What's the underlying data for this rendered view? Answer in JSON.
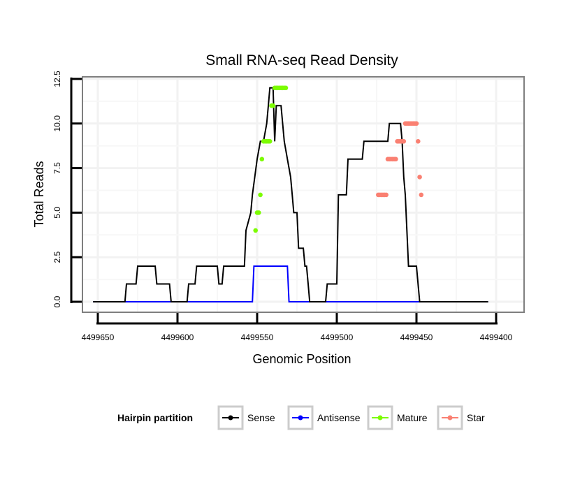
{
  "chart_data": {
    "type": "line",
    "title": "Small RNA-seq Read Density",
    "xlabel": "Genomic Position",
    "ylabel": "Total Reads",
    "x_reversed": true,
    "xlim": [
      4499405,
      4499655
    ],
    "ylim": [
      0,
      12.5
    ],
    "xticks": [
      4499650,
      4499600,
      4499550,
      4499500,
      4499450,
      4499400
    ],
    "xtick_labels": [
      "4499650",
      "4499600",
      "4499550",
      "4499500",
      "4499450",
      "4499400"
    ],
    "yticks": [
      0,
      2.5,
      5,
      7.5,
      10,
      12.5
    ],
    "ytick_labels": [
      "0.0",
      "2.5",
      "5.0",
      "7.5",
      "10.0",
      "12.5"
    ],
    "legend": {
      "title": "Hairpin partition",
      "position": "bottom",
      "entries": [
        {
          "name": "Sense",
          "color": "#000000"
        },
        {
          "name": "Antisense",
          "color": "#0000ff"
        },
        {
          "name": "Mature",
          "color": "#7cfc00"
        },
        {
          "name": "Star",
          "color": "#fa8072"
        }
      ]
    },
    "series": [
      {
        "name": "Sense",
        "color": "#000000",
        "x": [
          4499653,
          4499633,
          4499632,
          4499626,
          4499625,
          4499614,
          4499613,
          4499605,
          4499604,
          4499594,
          4499593,
          4499589,
          4499588,
          4499575,
          4499574,
          4499572,
          4499571,
          4499558,
          4499557,
          4499554,
          4499553,
          4499550,
          4499548,
          4499546,
          4499544,
          4499543,
          4499542,
          4499541,
          4499540,
          4499539,
          4499538,
          4499537,
          4499536,
          4499535,
          4499534,
          4499533,
          4499531,
          4499529,
          4499528,
          4499527,
          4499526,
          4499525,
          4499524,
          4499521,
          4499520,
          4499519,
          4499518,
          4499517,
          4499516,
          4499515,
          4499514,
          4499513,
          4499512,
          4499511,
          4499510,
          4499509,
          4499507,
          4499506,
          4499500,
          4499499,
          4499494,
          4499493,
          4499484,
          4499483,
          4499468,
          4499467,
          4499466,
          4499465,
          4499464,
          4499463,
          4499462,
          4499461,
          4499460,
          4499459,
          4499458,
          4499457,
          4499456,
          4499455,
          4499454,
          4499453,
          4499452,
          4499451,
          4499450,
          4499449,
          4499448,
          4499447,
          4499446,
          4499445,
          4499441,
          4499440,
          4499439,
          4499438,
          4499433,
          4499432,
          4499405
        ],
        "y": [
          0,
          0,
          1,
          1,
          2,
          2,
          1,
          1,
          0,
          0,
          1,
          1,
          2,
          2,
          1,
          1,
          2,
          2,
          4,
          5,
          6,
          8,
          9,
          9,
          10,
          11,
          12,
          12,
          12,
          9,
          11,
          11,
          11,
          11,
          10,
          9,
          8,
          7,
          6,
          5,
          5,
          5,
          3,
          3,
          2,
          2,
          1,
          0,
          0,
          0,
          0,
          0,
          0,
          0,
          0,
          0,
          0,
          1,
          1,
          6,
          6,
          8,
          8,
          9,
          9,
          10,
          10,
          10,
          10,
          10,
          10,
          10,
          10,
          9,
          7,
          6,
          4,
          2,
          2,
          2,
          2,
          2,
          2,
          1,
          0,
          0,
          0,
          0,
          0,
          0,
          0,
          0,
          0,
          0,
          0
        ],
        "_note": "approximate step profile read from gridlines"
      },
      {
        "name": "Antisense",
        "color": "#0000ff",
        "x": [
          4499653,
          4499553,
          4499552,
          4499531,
          4499530,
          4499405
        ],
        "y": [
          0,
          0,
          2,
          2,
          0,
          0
        ]
      },
      {
        "name": "Mature",
        "color": "#7cfc00",
        "points": [
          [
            4499551,
            4
          ],
          [
            4499550,
            5
          ],
          [
            4499549,
            5
          ],
          [
            4499548,
            6
          ],
          [
            4499547,
            8
          ],
          [
            4499546,
            9
          ],
          [
            4499545,
            9
          ],
          [
            4499544,
            9
          ],
          [
            4499543,
            9
          ],
          [
            4499542,
            9
          ],
          [
            4499541,
            11
          ],
          [
            4499540,
            11
          ],
          [
            4499539,
            12
          ],
          [
            4499538,
            12
          ],
          [
            4499537,
            12
          ],
          [
            4499536,
            12
          ],
          [
            4499535,
            12
          ],
          [
            4499534,
            12
          ],
          [
            4499533,
            12
          ],
          [
            4499532,
            12
          ]
        ]
      },
      {
        "name": "Star",
        "color": "#fa8072",
        "points": [
          [
            4499474,
            6
          ],
          [
            4499473,
            6
          ],
          [
            4499472,
            6
          ],
          [
            4499471,
            6
          ],
          [
            4499470,
            6
          ],
          [
            4499469,
            6
          ],
          [
            4499468,
            8
          ],
          [
            4499467,
            8
          ],
          [
            4499466,
            8
          ],
          [
            4499465,
            8
          ],
          [
            4499464,
            8
          ],
          [
            4499463,
            8
          ],
          [
            4499462,
            9
          ],
          [
            4499461,
            9
          ],
          [
            4499460,
            9
          ],
          [
            4499459,
            9
          ],
          [
            4499458,
            9
          ],
          [
            4499457,
            10
          ],
          [
            4499456,
            10
          ],
          [
            4499455,
            10
          ],
          [
            4499454,
            10
          ],
          [
            4499453,
            10
          ],
          [
            4499452,
            10
          ],
          [
            4499451,
            10
          ],
          [
            4499450,
            10
          ],
          [
            4499449,
            9
          ],
          [
            4499448,
            7
          ],
          [
            4499447,
            6
          ]
        ]
      }
    ]
  }
}
